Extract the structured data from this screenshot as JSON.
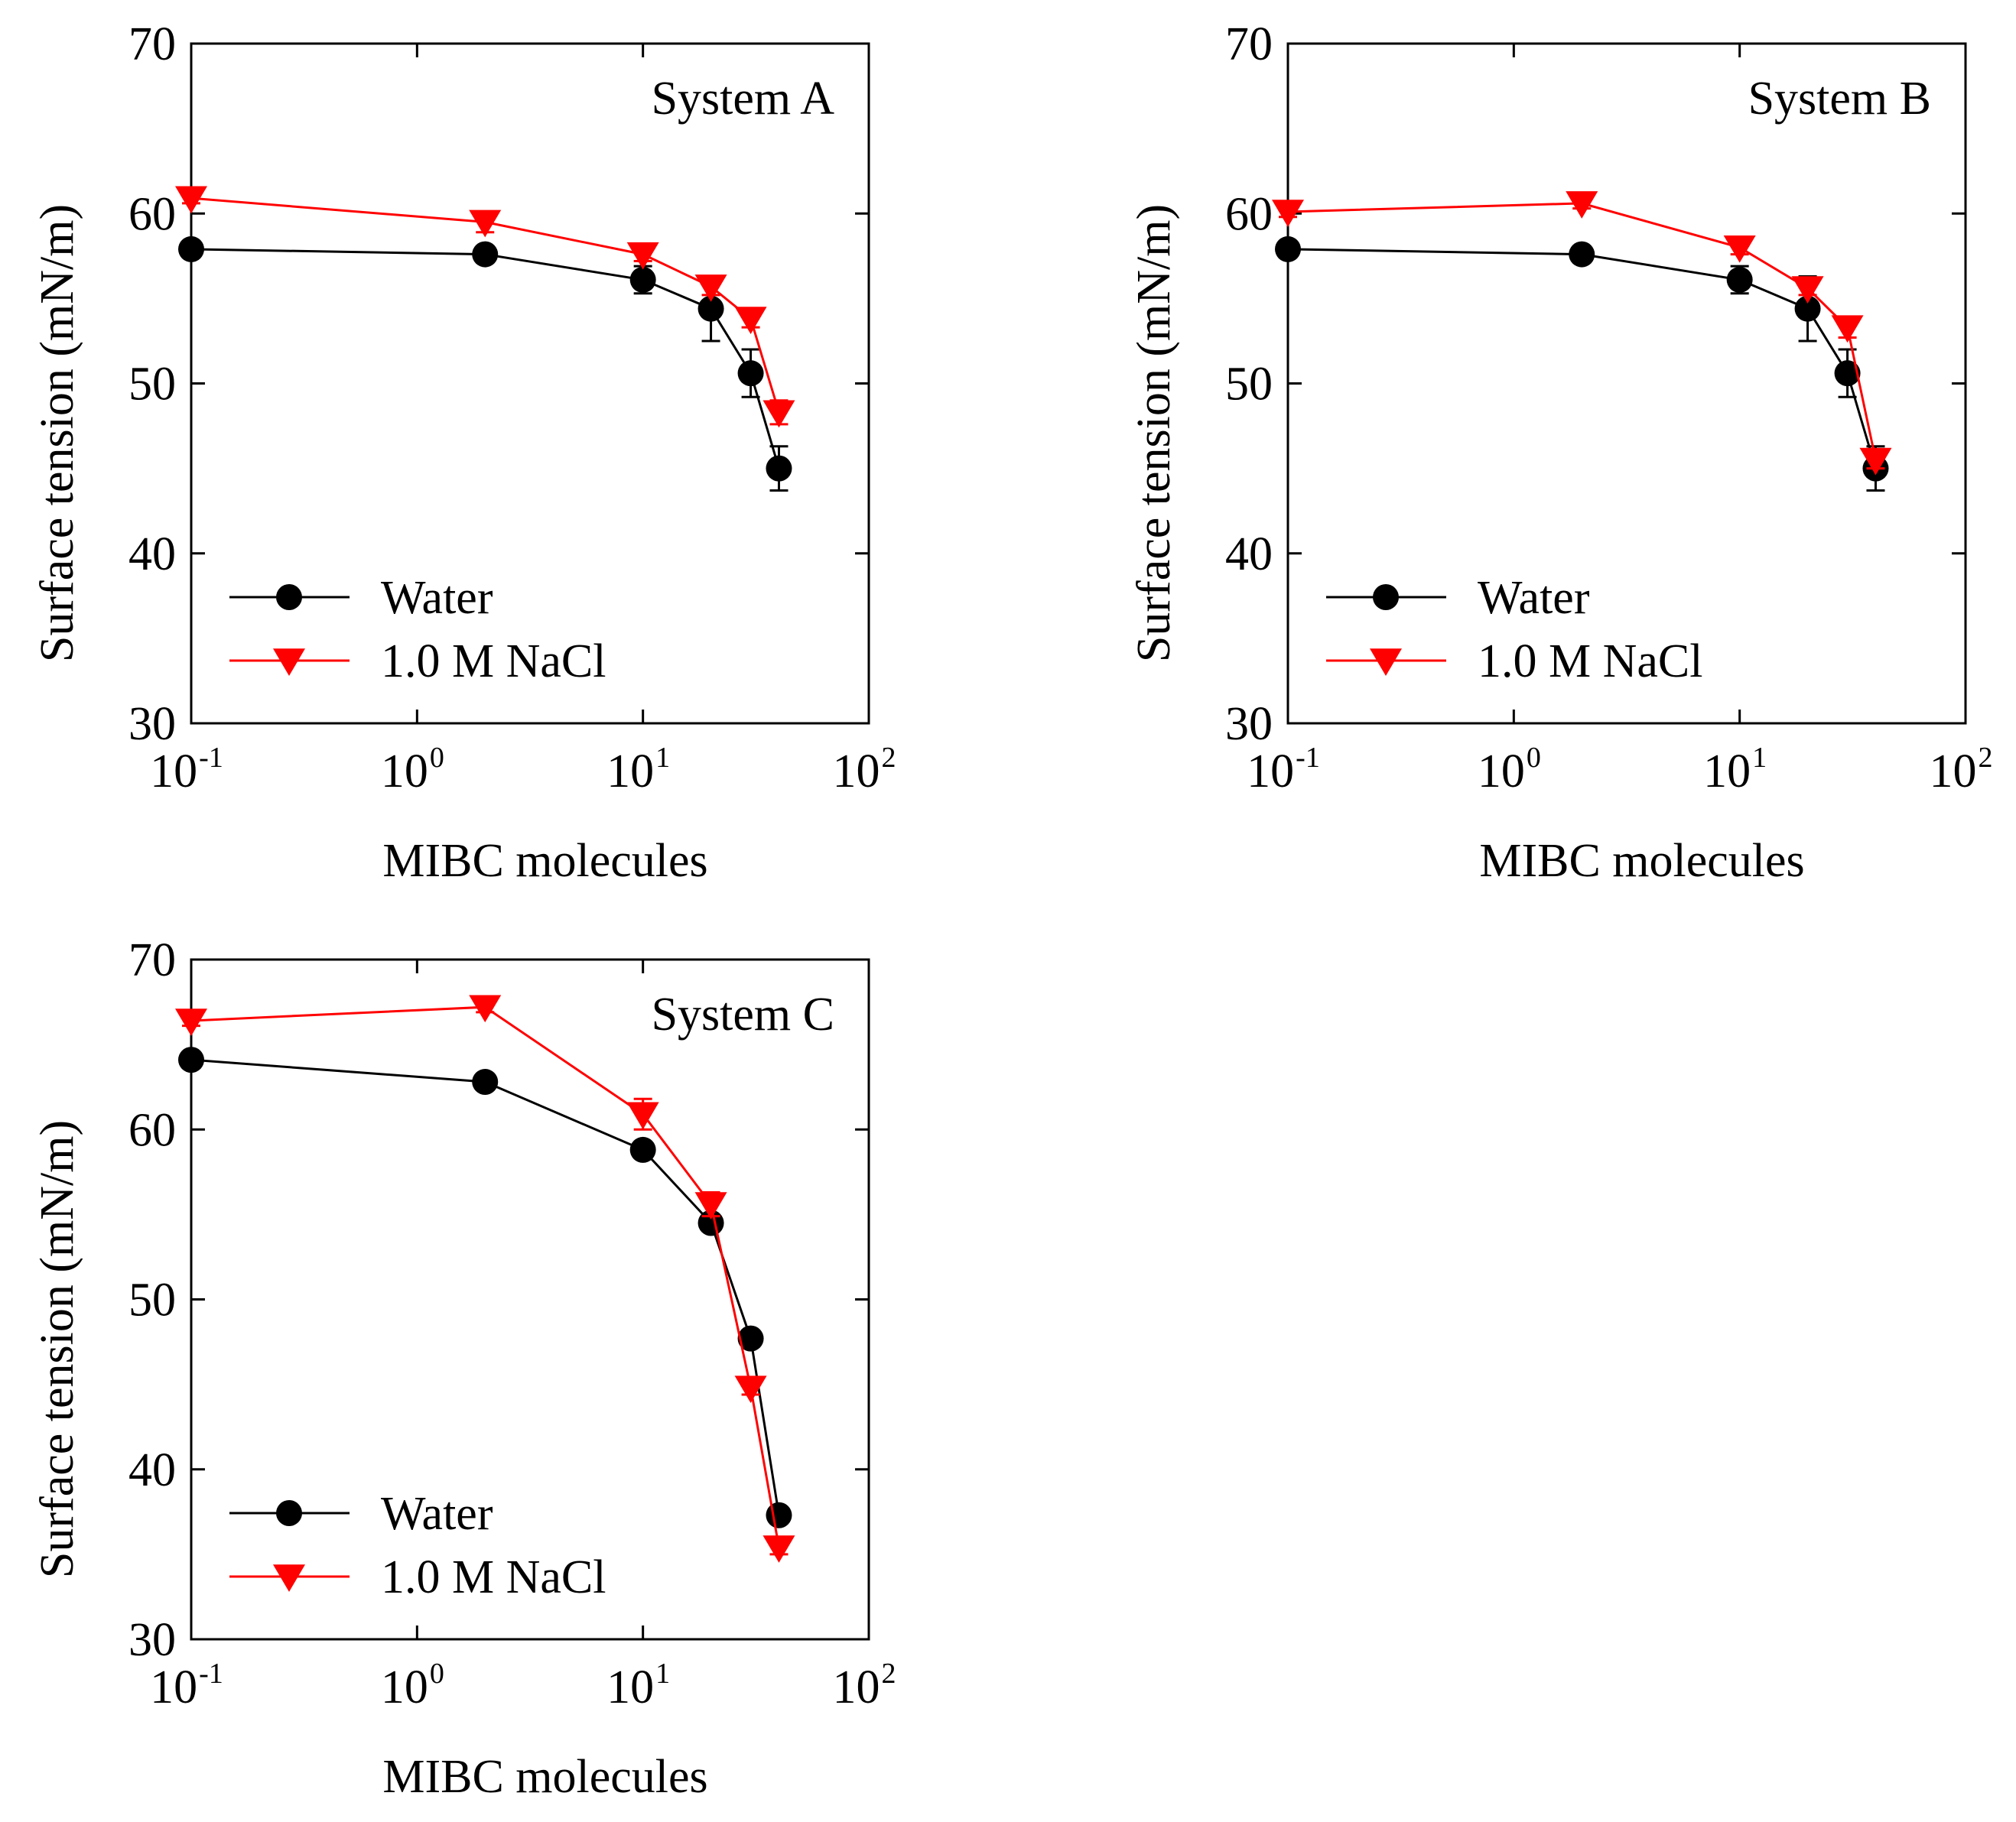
{
  "chart_data": [
    {
      "type": "line",
      "title": "System A",
      "xlabel": "MIBC molecules",
      "ylabel": "Surface tension (mN/m)",
      "xscale": "log",
      "xlim": [
        0.1,
        100
      ],
      "ylim": [
        30,
        70
      ],
      "yticks": [
        30,
        40,
        50,
        60,
        70
      ],
      "xticks": [
        {
          "base": "10",
          "exp": "-1"
        },
        {
          "base": "10",
          "exp": "0"
        },
        {
          "base": "10",
          "exp": "1"
        },
        {
          "base": "10",
          "exp": "2"
        }
      ],
      "legend_position": "bottom-left",
      "series": [
        {
          "name": "Water",
          "color": "#000000",
          "marker": "circle",
          "x": [
            0.1,
            2,
            10,
            20,
            30,
            40
          ],
          "y": [
            57.9,
            57.6,
            56.1,
            54.4,
            50.6,
            45.0
          ],
          "err": [
            0.3,
            0.4,
            0.8,
            1.9,
            1.4,
            1.3
          ]
        },
        {
          "name": "1.0 M NaCl",
          "color": "#ff0000",
          "marker": "triangle-down",
          "x": [
            0.1,
            2,
            10,
            20,
            30,
            40
          ],
          "y": [
            60.9,
            59.5,
            57.6,
            55.7,
            53.8,
            48.3
          ],
          "err": [
            0.3,
            0.6,
            0.4,
            0.5,
            0.5,
            0.7
          ]
        }
      ]
    },
    {
      "type": "line",
      "title": "System B",
      "xlabel": "MIBC molecules",
      "ylabel": "Surface tension (mN/m)",
      "xscale": "log",
      "xlim": [
        0.1,
        100
      ],
      "ylim": [
        30,
        70
      ],
      "yticks": [
        30,
        40,
        50,
        60,
        70
      ],
      "xticks": [
        {
          "base": "10",
          "exp": "-1"
        },
        {
          "base": "10",
          "exp": "0"
        },
        {
          "base": "10",
          "exp": "1"
        },
        {
          "base": "10",
          "exp": "2"
        }
      ],
      "legend_position": "bottom-left",
      "series": [
        {
          "name": "Water",
          "color": "#000000",
          "marker": "circle",
          "x": [
            0.1,
            2,
            10,
            20,
            30,
            40
          ],
          "y": [
            57.9,
            57.6,
            56.1,
            54.4,
            50.6,
            45.0
          ],
          "err": [
            0.3,
            0.4,
            0.8,
            1.9,
            1.4,
            1.3
          ]
        },
        {
          "name": "1.0 M NaCl",
          "color": "#ff0000",
          "marker": "triangle-down",
          "x": [
            0.1,
            2,
            10,
            20,
            30,
            40
          ],
          "y": [
            60.1,
            60.6,
            58.0,
            55.6,
            53.3,
            45.5
          ],
          "err": [
            0.3,
            0.3,
            0.4,
            0.4,
            0.6,
            0.5
          ]
        }
      ]
    },
    {
      "type": "line",
      "title": "System C",
      "xlabel": "MIBC molecules",
      "ylabel": "Surface tension (mN/m)",
      "xscale": "log",
      "xlim": [
        0.1,
        100
      ],
      "ylim": [
        30,
        70
      ],
      "yticks": [
        30,
        40,
        50,
        60,
        70
      ],
      "xticks": [
        {
          "base": "10",
          "exp": "-1"
        },
        {
          "base": "10",
          "exp": "0"
        },
        {
          "base": "10",
          "exp": "1"
        },
        {
          "base": "10",
          "exp": "2"
        }
      ],
      "legend_position": "bottom-left",
      "series": [
        {
          "name": "Water",
          "color": "#000000",
          "marker": "circle",
          "x": [
            0.1,
            2,
            10,
            20,
            30,
            40
          ],
          "y": [
            64.1,
            62.8,
            58.8,
            54.5,
            47.7,
            37.3
          ],
          "err": [
            0.3,
            0.3,
            0.4,
            0.4,
            0.4,
            0.4
          ]
        },
        {
          "name": "1.0 M NaCl",
          "color": "#ff0000",
          "marker": "triangle-down",
          "x": [
            0.1,
            2,
            10,
            20,
            30,
            40
          ],
          "y": [
            66.4,
            67.2,
            60.9,
            55.6,
            44.8,
            35.4
          ],
          "err": [
            0.3,
            0.3,
            0.9,
            0.7,
            0.4,
            0.4
          ]
        }
      ]
    }
  ]
}
